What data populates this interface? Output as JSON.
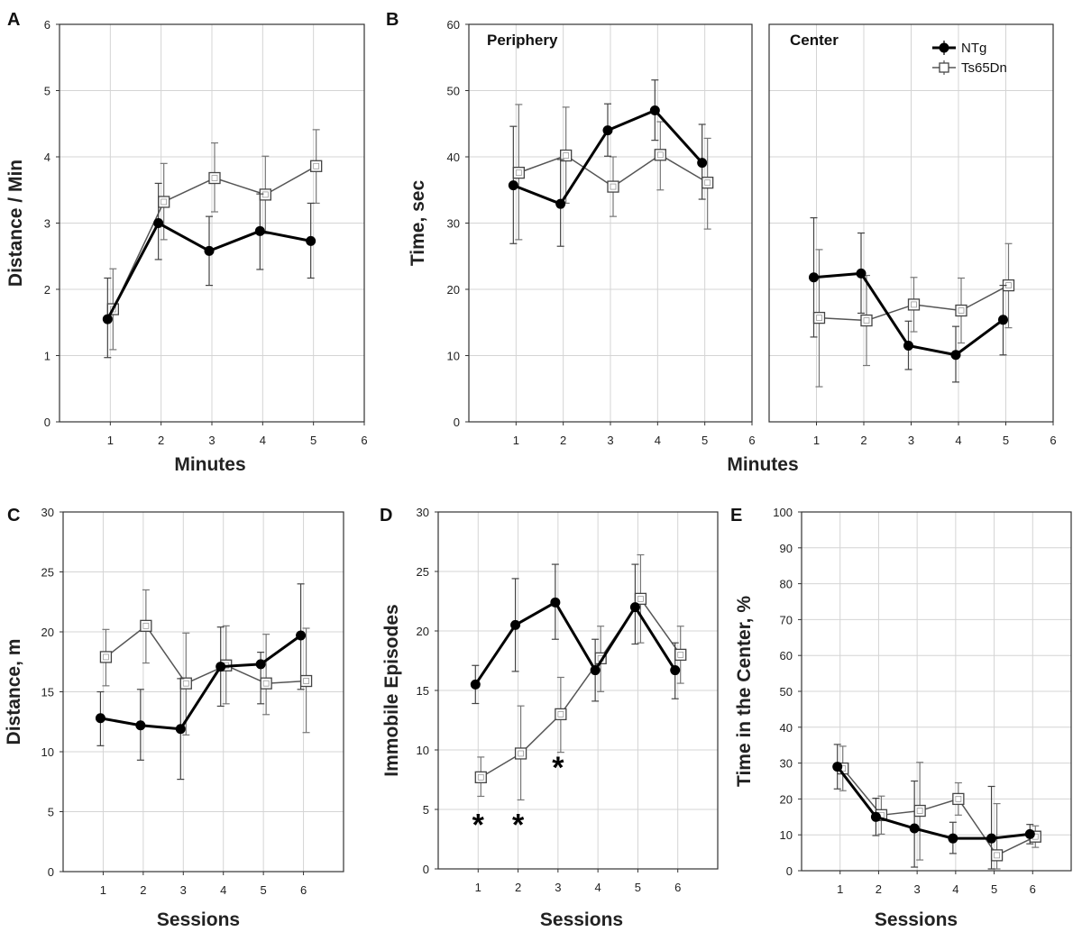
{
  "legend": {
    "series": [
      {
        "name": "NTg",
        "marker": "filled-circle",
        "color": "#000000"
      },
      {
        "name": "Ts65Dn",
        "marker": "open-square",
        "color": "#555555"
      }
    ],
    "placement": "top-right of panel B Center"
  },
  "chart_data": [
    {
      "id": "A",
      "panel_label": "A",
      "type": "line",
      "subtitle": "",
      "xlabel": "Minutes",
      "ylabel": "Distance / Min",
      "xlim": [
        0,
        6
      ],
      "ylim": [
        0,
        6
      ],
      "xticks": [
        "1",
        "2",
        "3",
        "4",
        "5",
        "6"
      ],
      "yticks": [
        "0",
        "1",
        "2",
        "3",
        "4",
        "5",
        "6"
      ],
      "x": [
        1,
        2,
        3,
        4,
        5
      ],
      "series": [
        {
          "name": "NTg",
          "values": [
            1.55,
            3.0,
            2.58,
            2.88,
            2.73
          ],
          "err_low": [
            0.97,
            2.45,
            2.06,
            2.3,
            2.17
          ],
          "err_high": [
            2.17,
            3.6,
            3.1,
            3.44,
            3.3
          ]
        },
        {
          "name": "Ts65Dn",
          "values": [
            1.7,
            3.32,
            3.68,
            3.43,
            3.86
          ],
          "err_low": [
            1.09,
            2.75,
            3.17,
            2.84,
            3.3
          ],
          "err_high": [
            2.31,
            3.9,
            4.21,
            4.01,
            4.41
          ]
        }
      ],
      "annotations": []
    },
    {
      "id": "B-periphery",
      "panel_label": "B",
      "type": "line",
      "subtitle": "Periphery",
      "xlabel": "",
      "ylabel": "Time, sec",
      "xlim": [
        0,
        6
      ],
      "ylim": [
        0,
        60
      ],
      "xticks": [
        "1",
        "2",
        "3",
        "4",
        "5",
        "6"
      ],
      "yticks": [
        "0",
        "10",
        "20",
        "30",
        "40",
        "50",
        "60"
      ],
      "x": [
        1,
        2,
        3,
        4,
        5
      ],
      "series": [
        {
          "name": "NTg",
          "values": [
            35.7,
            32.9,
            44.0,
            47.0,
            39.1
          ],
          "err_low": [
            26.9,
            26.5,
            40.1,
            42.5,
            33.6
          ],
          "err_high": [
            44.6,
            39.6,
            48.0,
            51.6,
            44.9
          ]
        },
        {
          "name": "Ts65Dn",
          "values": [
            37.6,
            40.2,
            35.5,
            40.3,
            36.1
          ],
          "err_low": [
            27.5,
            33.0,
            31.0,
            35.0,
            29.1
          ],
          "err_high": [
            47.9,
            47.5,
            40.0,
            45.3,
            42.8
          ]
        }
      ],
      "annotations": []
    },
    {
      "id": "B-center",
      "panel_label": "",
      "type": "line",
      "subtitle": "Center",
      "xlabel": "Minutes",
      "ylabel": "",
      "xlim": [
        0,
        6
      ],
      "ylim": [
        0,
        60
      ],
      "xticks": [
        "1",
        "2",
        "3",
        "4",
        "5",
        "6"
      ],
      "yticks": [],
      "x": [
        1,
        2,
        3,
        4,
        5
      ],
      "series": [
        {
          "name": "NTg",
          "values": [
            21.8,
            22.4,
            11.5,
            10.1,
            15.4
          ],
          "err_low": [
            12.8,
            16.4,
            7.9,
            6.0,
            10.1
          ],
          "err_high": [
            30.8,
            28.5,
            15.2,
            14.4,
            20.6
          ]
        },
        {
          "name": "Ts65Dn",
          "values": [
            15.7,
            15.3,
            17.7,
            16.8,
            20.6
          ],
          "err_low": [
            5.3,
            8.5,
            13.6,
            11.9,
            14.2
          ],
          "err_high": [
            26.0,
            22.1,
            21.8,
            21.7,
            26.9
          ]
        }
      ],
      "annotations": []
    },
    {
      "id": "C",
      "panel_label": "C",
      "type": "line",
      "subtitle": "",
      "xlabel": "Sessions",
      "ylabel": "Distance, m",
      "xlim": [
        0,
        7
      ],
      "ylim": [
        0,
        30
      ],
      "xticks": [
        "1",
        "2",
        "3",
        "4",
        "5",
        "6"
      ],
      "yticks": [
        "0",
        "5",
        "10",
        "15",
        "20",
        "25",
        "30"
      ],
      "x": [
        1,
        2,
        3,
        4,
        5,
        6
      ],
      "series": [
        {
          "name": "NTg",
          "values": [
            12.8,
            12.2,
            11.9,
            17.1,
            17.3,
            19.7
          ],
          "err_low": [
            10.5,
            9.3,
            7.7,
            13.8,
            14.0,
            15.2
          ],
          "err_high": [
            15.0,
            15.2,
            16.1,
            20.4,
            18.3,
            24.0
          ]
        },
        {
          "name": "Ts65Dn",
          "values": [
            17.9,
            20.5,
            15.7,
            17.2,
            15.7,
            15.9
          ],
          "err_low": [
            15.5,
            17.4,
            11.4,
            14.0,
            13.1,
            11.6
          ],
          "err_high": [
            20.2,
            23.5,
            19.9,
            20.5,
            19.8,
            20.3
          ]
        }
      ],
      "annotations": []
    },
    {
      "id": "D",
      "panel_label": "D",
      "type": "line",
      "subtitle": "",
      "xlabel": "Sessions",
      "ylabel": "Immobile Episodes",
      "xlim": [
        0,
        7
      ],
      "ylim": [
        0,
        30
      ],
      "xticks": [
        "1",
        "2",
        "3",
        "4",
        "5",
        "6"
      ],
      "yticks": [
        "0",
        "5",
        "10",
        "15",
        "20",
        "25",
        "30"
      ],
      "x": [
        1,
        2,
        3,
        4,
        5,
        6
      ],
      "series": [
        {
          "name": "NTg",
          "values": [
            15.5,
            20.5,
            22.4,
            16.7,
            22.0,
            16.7
          ],
          "err_low": [
            13.9,
            16.6,
            19.3,
            14.1,
            18.9,
            14.3
          ],
          "err_high": [
            17.1,
            24.4,
            25.6,
            19.3,
            25.6,
            19.0
          ]
        },
        {
          "name": "Ts65Dn",
          "values": [
            7.7,
            9.7,
            13.0,
            17.7,
            22.7,
            18.0
          ],
          "err_low": [
            6.1,
            5.8,
            9.8,
            14.9,
            19.0,
            15.6
          ],
          "err_high": [
            9.4,
            13.7,
            16.1,
            20.4,
            26.4,
            20.4
          ]
        }
      ],
      "annotations": [
        {
          "text": "*",
          "x": 1,
          "y": 4.5
        },
        {
          "text": "*",
          "x": 2,
          "y": 4.5
        },
        {
          "text": "*",
          "x": 3,
          "y": 9.3
        }
      ]
    },
    {
      "id": "E",
      "panel_label": "E",
      "type": "line",
      "subtitle": "",
      "xlabel": "Sessions",
      "ylabel": "Time in the Center, %",
      "xlim": [
        0,
        7
      ],
      "ylim": [
        0,
        100
      ],
      "xticks": [
        "1",
        "2",
        "3",
        "4",
        "5",
        "6"
      ],
      "yticks": [
        "0",
        "10",
        "20",
        "30",
        "40",
        "50",
        "60",
        "70",
        "80",
        "90",
        "100"
      ],
      "x": [
        1,
        2,
        3,
        4,
        5,
        6
      ],
      "series": [
        {
          "name": "NTg",
          "values": [
            29.0,
            15.0,
            11.8,
            9.0,
            9.0,
            10.2
          ],
          "err_low": [
            22.8,
            9.8,
            1.0,
            4.8,
            0.5,
            7.5
          ],
          "err_high": [
            35.2,
            20.2,
            25.0,
            13.5,
            23.5,
            12.9
          ]
        },
        {
          "name": "Ts65Dn",
          "values": [
            28.5,
            15.5,
            16.7,
            20.0,
            4.3,
            9.5
          ],
          "err_low": [
            22.3,
            10.2,
            3.0,
            15.5,
            0.5,
            6.5
          ],
          "err_high": [
            34.7,
            20.8,
            30.2,
            24.5,
            18.7,
            12.5
          ]
        }
      ],
      "annotations": []
    }
  ]
}
